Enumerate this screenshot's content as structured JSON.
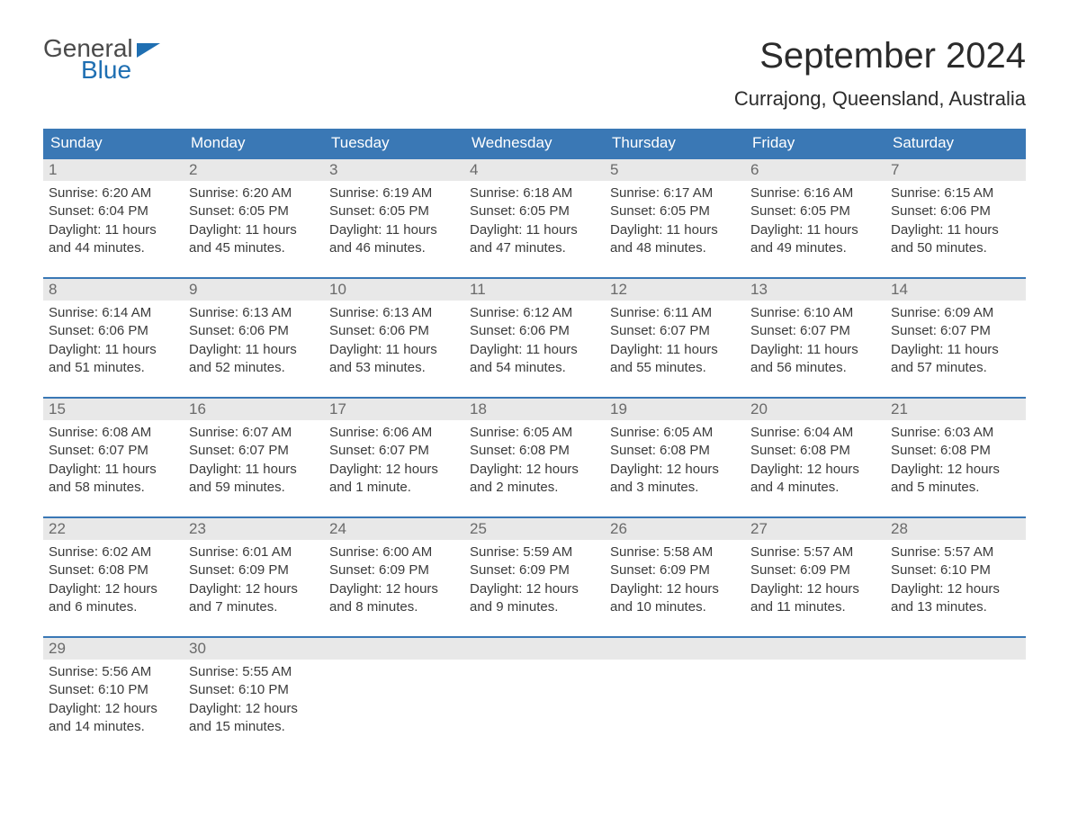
{
  "logo": {
    "text1": "General",
    "text2": "Blue",
    "color_general": "#4a4a4a",
    "color_blue": "#1f6fb2"
  },
  "title": "September 2024",
  "location": "Currajong, Queensland, Australia",
  "colors": {
    "header_bg": "#3a78b5",
    "header_text": "#ffffff",
    "daynum_bg": "#e8e8e8",
    "daynum_text": "#6a6a6a",
    "body_text": "#3a3a3a",
    "week_border": "#3a78b5",
    "page_bg": "#ffffff"
  },
  "fonts": {
    "title_size": 40,
    "location_size": 22,
    "dow_size": 17,
    "daynum_size": 17,
    "body_size": 15
  },
  "days_of_week": [
    "Sunday",
    "Monday",
    "Tuesday",
    "Wednesday",
    "Thursday",
    "Friday",
    "Saturday"
  ],
  "weeks": [
    [
      {
        "n": "1",
        "sunrise": "6:20 AM",
        "sunset": "6:04 PM",
        "daylight": "11 hours and 44 minutes."
      },
      {
        "n": "2",
        "sunrise": "6:20 AM",
        "sunset": "6:05 PM",
        "daylight": "11 hours and 45 minutes."
      },
      {
        "n": "3",
        "sunrise": "6:19 AM",
        "sunset": "6:05 PM",
        "daylight": "11 hours and 46 minutes."
      },
      {
        "n": "4",
        "sunrise": "6:18 AM",
        "sunset": "6:05 PM",
        "daylight": "11 hours and 47 minutes."
      },
      {
        "n": "5",
        "sunrise": "6:17 AM",
        "sunset": "6:05 PM",
        "daylight": "11 hours and 48 minutes."
      },
      {
        "n": "6",
        "sunrise": "6:16 AM",
        "sunset": "6:05 PM",
        "daylight": "11 hours and 49 minutes."
      },
      {
        "n": "7",
        "sunrise": "6:15 AM",
        "sunset": "6:06 PM",
        "daylight": "11 hours and 50 minutes."
      }
    ],
    [
      {
        "n": "8",
        "sunrise": "6:14 AM",
        "sunset": "6:06 PM",
        "daylight": "11 hours and 51 minutes."
      },
      {
        "n": "9",
        "sunrise": "6:13 AM",
        "sunset": "6:06 PM",
        "daylight": "11 hours and 52 minutes."
      },
      {
        "n": "10",
        "sunrise": "6:13 AM",
        "sunset": "6:06 PM",
        "daylight": "11 hours and 53 minutes."
      },
      {
        "n": "11",
        "sunrise": "6:12 AM",
        "sunset": "6:06 PM",
        "daylight": "11 hours and 54 minutes."
      },
      {
        "n": "12",
        "sunrise": "6:11 AM",
        "sunset": "6:07 PM",
        "daylight": "11 hours and 55 minutes."
      },
      {
        "n": "13",
        "sunrise": "6:10 AM",
        "sunset": "6:07 PM",
        "daylight": "11 hours and 56 minutes."
      },
      {
        "n": "14",
        "sunrise": "6:09 AM",
        "sunset": "6:07 PM",
        "daylight": "11 hours and 57 minutes."
      }
    ],
    [
      {
        "n": "15",
        "sunrise": "6:08 AM",
        "sunset": "6:07 PM",
        "daylight": "11 hours and 58 minutes."
      },
      {
        "n": "16",
        "sunrise": "6:07 AM",
        "sunset": "6:07 PM",
        "daylight": "11 hours and 59 minutes."
      },
      {
        "n": "17",
        "sunrise": "6:06 AM",
        "sunset": "6:07 PM",
        "daylight": "12 hours and 1 minute."
      },
      {
        "n": "18",
        "sunrise": "6:05 AM",
        "sunset": "6:08 PM",
        "daylight": "12 hours and 2 minutes."
      },
      {
        "n": "19",
        "sunrise": "6:05 AM",
        "sunset": "6:08 PM",
        "daylight": "12 hours and 3 minutes."
      },
      {
        "n": "20",
        "sunrise": "6:04 AM",
        "sunset": "6:08 PM",
        "daylight": "12 hours and 4 minutes."
      },
      {
        "n": "21",
        "sunrise": "6:03 AM",
        "sunset": "6:08 PM",
        "daylight": "12 hours and 5 minutes."
      }
    ],
    [
      {
        "n": "22",
        "sunrise": "6:02 AM",
        "sunset": "6:08 PM",
        "daylight": "12 hours and 6 minutes."
      },
      {
        "n": "23",
        "sunrise": "6:01 AM",
        "sunset": "6:09 PM",
        "daylight": "12 hours and 7 minutes."
      },
      {
        "n": "24",
        "sunrise": "6:00 AM",
        "sunset": "6:09 PM",
        "daylight": "12 hours and 8 minutes."
      },
      {
        "n": "25",
        "sunrise": "5:59 AM",
        "sunset": "6:09 PM",
        "daylight": "12 hours and 9 minutes."
      },
      {
        "n": "26",
        "sunrise": "5:58 AM",
        "sunset": "6:09 PM",
        "daylight": "12 hours and 10 minutes."
      },
      {
        "n": "27",
        "sunrise": "5:57 AM",
        "sunset": "6:09 PM",
        "daylight": "12 hours and 11 minutes."
      },
      {
        "n": "28",
        "sunrise": "5:57 AM",
        "sunset": "6:10 PM",
        "daylight": "12 hours and 13 minutes."
      }
    ],
    [
      {
        "n": "29",
        "sunrise": "5:56 AM",
        "sunset": "6:10 PM",
        "daylight": "12 hours and 14 minutes."
      },
      {
        "n": "30",
        "sunrise": "5:55 AM",
        "sunset": "6:10 PM",
        "daylight": "12 hours and 15 minutes."
      },
      {
        "empty": true
      },
      {
        "empty": true
      },
      {
        "empty": true
      },
      {
        "empty": true
      },
      {
        "empty": true
      }
    ]
  ],
  "labels": {
    "sunrise": "Sunrise:",
    "sunset": "Sunset:",
    "daylight": "Daylight:"
  }
}
